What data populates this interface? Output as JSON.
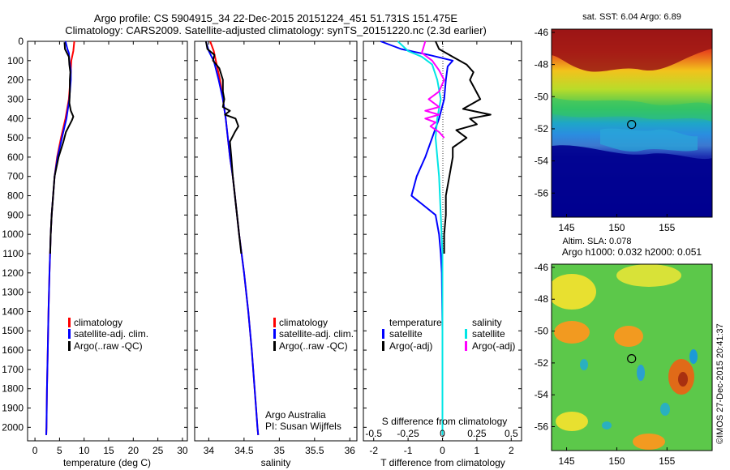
{
  "title_line1": "Argo profile: CS 5904915_34 22-Dec-2015 20151224_451 51.731S 151.475E",
  "title_line2": "Climatology: CARS2009. Satellite-adjusted climatology: synTS_20151220.nc (2.3d earlier)",
  "colors": {
    "climatology": "#ff0000",
    "satellite": "#0000ff",
    "argo": "#000000",
    "sal_satellite": "#00e5e5",
    "sal_argo": "#ff00ff"
  },
  "depth_ticks": [
    "0",
    "100",
    "200",
    "300",
    "400",
    "500",
    "600",
    "700",
    "800",
    "900",
    "1000",
    "1100",
    "1200",
    "1300",
    "1400",
    "1500",
    "1600",
    "1700",
    "1800",
    "1900",
    "2000"
  ],
  "chart_data": [
    {
      "type": "line",
      "xlabel": "temperature (deg C)",
      "xlim": [
        -1.5,
        31
      ],
      "ylim": [
        2070,
        0
      ],
      "x_ticks": [
        "0",
        "5",
        "10",
        "15",
        "20",
        "25",
        "30"
      ],
      "legend": [
        "climatology",
        "satellite-adj. clim.",
        "Argo(..raw -QC)"
      ],
      "series": [
        {
          "name": "climatology",
          "color": "#ff0000",
          "depth": [
            0,
            50,
            100,
            200,
            300,
            400,
            500,
            600,
            700,
            800,
            900,
            1000,
            1200,
            1400,
            1600,
            1800,
            2000,
            2040
          ],
          "x": [
            8.0,
            7.8,
            7.4,
            7.2,
            6.9,
            6.2,
            5.3,
            4.5,
            4.0,
            3.7,
            3.4,
            3.2,
            2.95,
            2.75,
            2.6,
            2.45,
            2.35,
            2.3
          ]
        },
        {
          "name": "satellite-adj. clim.",
          "color": "#0000ff",
          "depth": [
            0,
            40,
            60,
            100,
            150,
            200,
            300,
            400,
            500,
            600,
            700,
            800,
            900,
            1000,
            1200,
            1400,
            1600,
            1800,
            2000,
            2040
          ],
          "x": [
            6.2,
            6.6,
            6.9,
            7.0,
            7.3,
            7.3,
            7.0,
            6.4,
            5.5,
            4.6,
            4.0,
            3.7,
            3.4,
            3.2,
            2.95,
            2.75,
            2.6,
            2.45,
            2.35,
            2.3
          ]
        },
        {
          "name": "Argo(..raw -QC)",
          "color": "#000000",
          "depth": [
            5,
            40,
            80,
            120,
            160,
            200,
            260,
            320,
            360,
            390,
            410,
            430,
            470,
            520,
            600,
            700,
            800,
            900,
            1000,
            1100
          ],
          "x": [
            6.0,
            6.1,
            6.9,
            7.0,
            7.2,
            7.1,
            7.1,
            7.0,
            7.3,
            7.8,
            7.5,
            7.1,
            6.3,
            5.8,
            4.8,
            4.0,
            3.7,
            3.4,
            3.2,
            3.1
          ]
        }
      ]
    },
    {
      "type": "line",
      "xlabel": "salinity",
      "xlim": [
        33.8,
        36.1
      ],
      "ylim": [
        2070,
        0
      ],
      "x_ticks": [
        "34",
        "34.5",
        "35",
        "35.5",
        "36"
      ],
      "legend": [
        "climatology",
        "satellite-adj. clim.",
        "Argo(..raw -QC)"
      ],
      "annotation": [
        "Argo Australia",
        "PI: Susan Wijffels"
      ],
      "series": [
        {
          "name": "climatology",
          "color": "#ff0000",
          "depth": [
            0,
            50,
            100,
            200,
            300,
            400,
            500,
            600,
            700,
            800,
            900,
            1000,
            1200,
            1400,
            1600,
            1800,
            1900,
            2000,
            2040
          ],
          "x": [
            34.02,
            34.07,
            34.1,
            34.16,
            34.2,
            34.24,
            34.27,
            34.3,
            34.34,
            34.37,
            34.4,
            34.43,
            34.5,
            34.56,
            34.61,
            34.65,
            34.67,
            34.69,
            34.7
          ]
        },
        {
          "name": "satellite-adj. clim.",
          "color": "#0000ff",
          "depth": [
            0,
            50,
            80,
            100,
            200,
            300,
            400,
            500,
            600,
            700,
            800,
            900,
            1000,
            1200,
            1400,
            1600,
            1800,
            1900,
            2000,
            2040
          ],
          "x": [
            33.96,
            34.0,
            34.04,
            34.07,
            34.14,
            34.2,
            34.24,
            34.27,
            34.3,
            34.34,
            34.37,
            34.4,
            34.43,
            34.5,
            34.56,
            34.61,
            34.65,
            34.67,
            34.69,
            34.7
          ]
        },
        {
          "name": "Argo(..raw -QC)",
          "color": "#000000",
          "depth": [
            0,
            40,
            70,
            100,
            140,
            200,
            260,
            300,
            340,
            360,
            380,
            400,
            440,
            470,
            520,
            600,
            700,
            800,
            900,
            1000,
            1100
          ],
          "x": [
            33.96,
            33.98,
            34.08,
            34.06,
            34.15,
            34.2,
            34.2,
            34.22,
            34.2,
            34.3,
            34.23,
            34.38,
            34.42,
            34.37,
            34.3,
            34.32,
            34.34,
            34.37,
            34.4,
            34.43,
            34.46
          ]
        }
      ]
    },
    {
      "type": "line",
      "xlabel": "T difference from climatology",
      "x2label": "S difference from climatology",
      "xlim": [
        -2.3,
        2.3
      ],
      "ylim": [
        2070,
        0
      ],
      "x_ticks": [
        "-2",
        "-1",
        "0",
        "1",
        "2"
      ],
      "x2_ticks": [
        "-0.5",
        "-0.25",
        "0",
        "0.25",
        "0.5"
      ],
      "legend_titles": [
        "temperature",
        "salinity"
      ],
      "legend_left": [
        "satellite",
        "Argo(-adj)"
      ],
      "legend_right": [
        "satellite",
        "Argo(-adj)"
      ],
      "series": [
        {
          "name": "temperature satellite",
          "color": "#0000ff",
          "depth": [
            0,
            40,
            70,
            100,
            130,
            200,
            300,
            400,
            500,
            600,
            700,
            800,
            850,
            900,
            1000,
            1100,
            1200,
            1500,
            1800,
            2040
          ],
          "x": [
            -1.8,
            -1.2,
            -0.4,
            0.3,
            0.15,
            0.1,
            0.05,
            -0.1,
            -0.3,
            -0.5,
            -0.75,
            -0.9,
            -0.55,
            -0.2,
            -0.1,
            -0.05,
            -0.02,
            0,
            0,
            0
          ]
        },
        {
          "name": "temperature Argo(-adj)",
          "color": "#000000",
          "depth": [
            0,
            40,
            80,
            120,
            160,
            200,
            250,
            300,
            350,
            380,
            400,
            430,
            460,
            500,
            550,
            600,
            700,
            800,
            900,
            1000,
            1100
          ],
          "x": [
            -0.2,
            -0.1,
            0.3,
            0.7,
            0.9,
            0.8,
            0.95,
            1.1,
            0.6,
            1.4,
            0.8,
            1.0,
            0.4,
            0.7,
            0.3,
            0.3,
            0.2,
            0.1,
            0.1,
            0.05,
            0.05
          ]
        },
        {
          "name": "salinity satellite",
          "color": "#00e5e5",
          "depth": [
            0,
            50,
            80,
            120,
            200,
            300,
            400,
            500,
            700,
            900,
            1100,
            1500,
            2040
          ],
          "x": [
            -1.3,
            -1.0,
            -0.6,
            -0.3,
            -0.15,
            -0.05,
            -0.15,
            -0.2,
            -0.1,
            -0.05,
            0,
            0,
            0
          ]
        },
        {
          "name": "salinity Argo(-adj)",
          "color": "#ff00ff",
          "depth": [
            0,
            60,
            100,
            150,
            200,
            260,
            300,
            340,
            360,
            380,
            400,
            420,
            440,
            470,
            500
          ],
          "x": [
            -0.5,
            -0.6,
            -0.3,
            -0.1,
            0.05,
            -0.1,
            -0.4,
            -0.1,
            -0.5,
            -0.1,
            -0.5,
            -0.2,
            -0.35,
            -0.1,
            0.05
          ]
        }
      ]
    },
    {
      "type": "heatmap",
      "title": "sat. SST: 6.04 Argo: 6.89",
      "y_ticks": [
        "-46",
        "-48",
        "-50",
        "-52",
        "-54",
        "-56"
      ],
      "x_ticks": [
        "145",
        "150",
        "155"
      ],
      "lon_range": [
        143.5,
        159.5
      ],
      "lat_range": [
        -57.5,
        -45.8
      ],
      "marker": {
        "lon": 151.475,
        "lat": -51.731
      },
      "colors": {
        "warm": "#a51c1c",
        "mid": "#2ec46a",
        "cold": "#00008f"
      }
    },
    {
      "type": "heatmap",
      "title_line1": "Altim. SLA: 0.078",
      "title_line2": "Argo h1000: 0.032 h2000: 0.051",
      "y_ticks": [
        "-46",
        "-48",
        "-50",
        "-52",
        "-54",
        "-56"
      ],
      "x_ticks": [
        "145",
        "150",
        "155"
      ],
      "lon_range": [
        143.5,
        159.5
      ],
      "lat_range": [
        -57.5,
        -45.8
      ],
      "marker": {
        "lon": 151.475,
        "lat": -51.731
      },
      "credit": "©IMOS 27-Dec-2015 20:41:37"
    }
  ]
}
